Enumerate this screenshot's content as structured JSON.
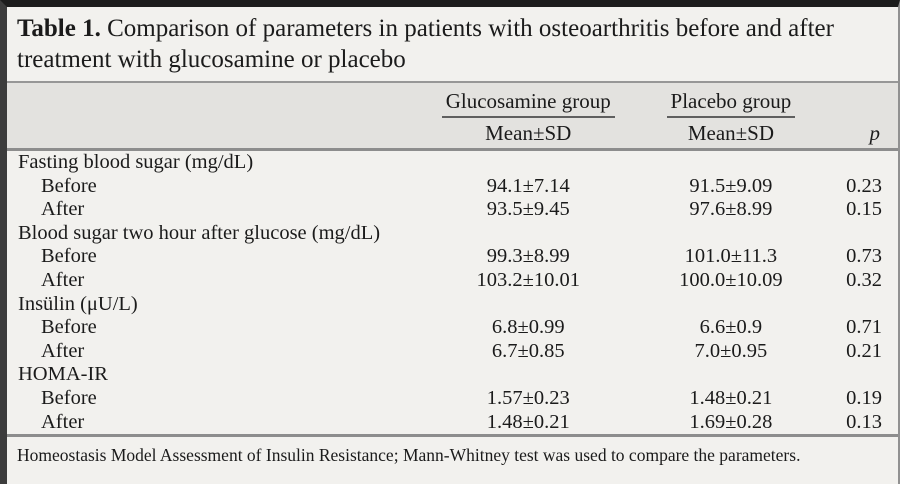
{
  "title": {
    "label": "Table 1.",
    "text": "Comparison of parameters in patients with osteoarthritis before and after treatment with glucosamine or placebo"
  },
  "header": {
    "group_glucosamine": "Glucosamine group",
    "group_placebo": "Placebo group",
    "mean_sd": "Mean±SD",
    "p_label": "p"
  },
  "table": {
    "sections": [
      {
        "label": "Fasting blood sugar (mg/dL)",
        "rows": [
          {
            "label": "Before",
            "glucosamine": "94.1±7.14",
            "placebo": "91.5±9.09",
            "p": "0.23"
          },
          {
            "label": "After",
            "glucosamine": "93.5±9.45",
            "placebo": "97.6±8.99",
            "p": "0.15"
          }
        ]
      },
      {
        "label": "Blood sugar two hour after glucose (mg/dL)",
        "rows": [
          {
            "label": "Before",
            "glucosamine": "99.3±8.99",
            "placebo": "101.0±11.3",
            "p": "0.73"
          },
          {
            "label": "After",
            "glucosamine": "103.2±10.01",
            "placebo": "100.0±10.09",
            "p": "0.32"
          }
        ]
      },
      {
        "label": "Insülin (μU/L)",
        "rows": [
          {
            "label": "Before",
            "glucosamine": "6.8±0.99",
            "placebo": "6.6±0.9",
            "p": "0.71"
          },
          {
            "label": "After",
            "glucosamine": "6.7±0.85",
            "placebo": "7.0±0.95",
            "p": "0.21"
          }
        ]
      },
      {
        "label": "HOMA-IR",
        "rows": [
          {
            "label": "Before",
            "glucosamine": "1.57±0.23",
            "placebo": "1.48±0.21",
            "p": "0.19"
          },
          {
            "label": "After",
            "glucosamine": "1.48±0.21",
            "placebo": "1.69±0.28",
            "p": "0.13"
          }
        ]
      }
    ]
  },
  "footnote": "Homeostasis Model Assessment of Insulin Resistance; Mann-Whitney test was used to compare the parameters.",
  "colors": {
    "page_background": "#f2f1ee",
    "header_band": "#e3e2df",
    "rule": "#8d8d8d",
    "text": "#1b1b1b"
  }
}
